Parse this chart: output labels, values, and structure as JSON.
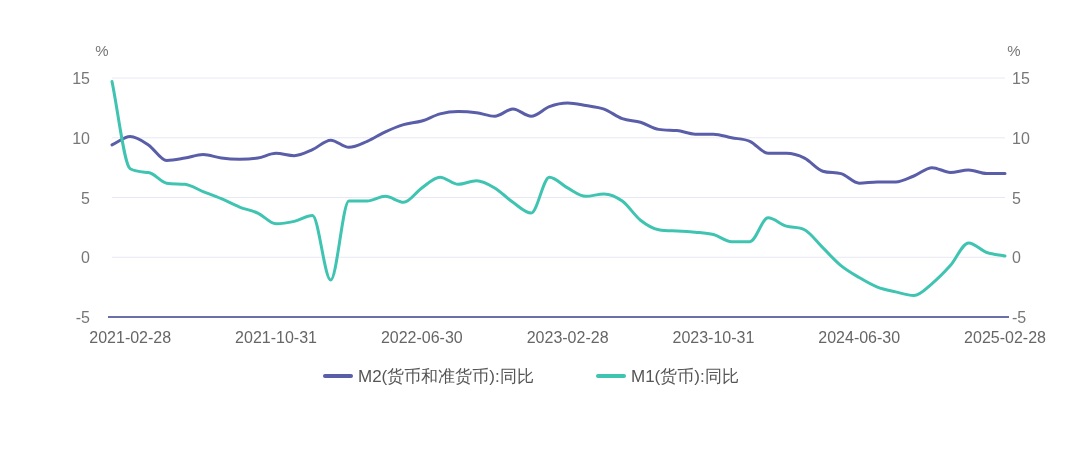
{
  "chart_data": {
    "type": "line",
    "ylabel": "%",
    "y2label": "%",
    "categories": [
      null,
      "2021-02-28",
      null,
      null,
      null,
      null,
      null,
      null,
      null,
      "2021-10-31",
      null,
      null,
      null,
      null,
      null,
      null,
      null,
      "2022-06-30",
      null,
      null,
      null,
      null,
      null,
      null,
      null,
      "2023-02-28",
      null,
      null,
      null,
      null,
      null,
      null,
      null,
      "2023-10-31",
      null,
      null,
      null,
      null,
      null,
      null,
      null,
      "2024-06-30",
      null,
      null,
      null,
      null,
      null,
      null,
      null,
      "2025-02-28"
    ],
    "series": [
      {
        "name": "M2(货币和准货币):同比",
        "color": "#5a5ea8",
        "values": [
          9.4,
          10.1,
          9.4,
          8.1,
          8.3,
          8.6,
          8.3,
          8.2,
          8.3,
          8.7,
          8.5,
          9.0,
          9.8,
          9.2,
          9.7,
          10.5,
          11.1,
          11.4,
          12.0,
          12.2,
          12.1,
          11.8,
          12.4,
          11.8,
          12.6,
          12.9,
          12.7,
          12.4,
          11.6,
          11.3,
          10.7,
          10.6,
          10.3,
          10.3,
          10.0,
          9.7,
          8.7,
          8.7,
          8.3,
          7.2,
          7.0,
          6.2,
          6.3,
          6.3,
          6.8,
          7.5,
          7.1,
          7.3,
          7.0,
          7.0
        ]
      },
      {
        "name": "M1(货币):同比",
        "color": "#3fc4b2",
        "values": [
          14.7,
          7.4,
          7.1,
          6.2,
          6.1,
          5.5,
          4.9,
          4.2,
          3.7,
          2.8,
          3.0,
          3.5,
          -1.9,
          4.7,
          4.7,
          5.1,
          4.6,
          5.8,
          6.7,
          6.1,
          6.4,
          5.8,
          4.6,
          3.7,
          6.7,
          5.8,
          5.1,
          5.3,
          4.7,
          3.1,
          2.3,
          2.2,
          2.1,
          1.9,
          1.3,
          1.3,
          3.3,
          2.6,
          2.3,
          0.8,
          -0.7,
          -1.7,
          -2.5,
          -2.9,
          -3.2,
          -2.2,
          -0.7,
          1.2,
          0.4,
          0.1
        ]
      }
    ],
    "ylim": [
      -5,
      15
    ],
    "yticks": [
      -5,
      0,
      5,
      10,
      15
    ],
    "y2lim": [
      -5,
      15
    ],
    "y2ticks": [
      -5,
      0,
      5,
      10,
      15
    ],
    "grid": "y",
    "legend": "bottom",
    "marker": "none",
    "line_style": "solid"
  }
}
